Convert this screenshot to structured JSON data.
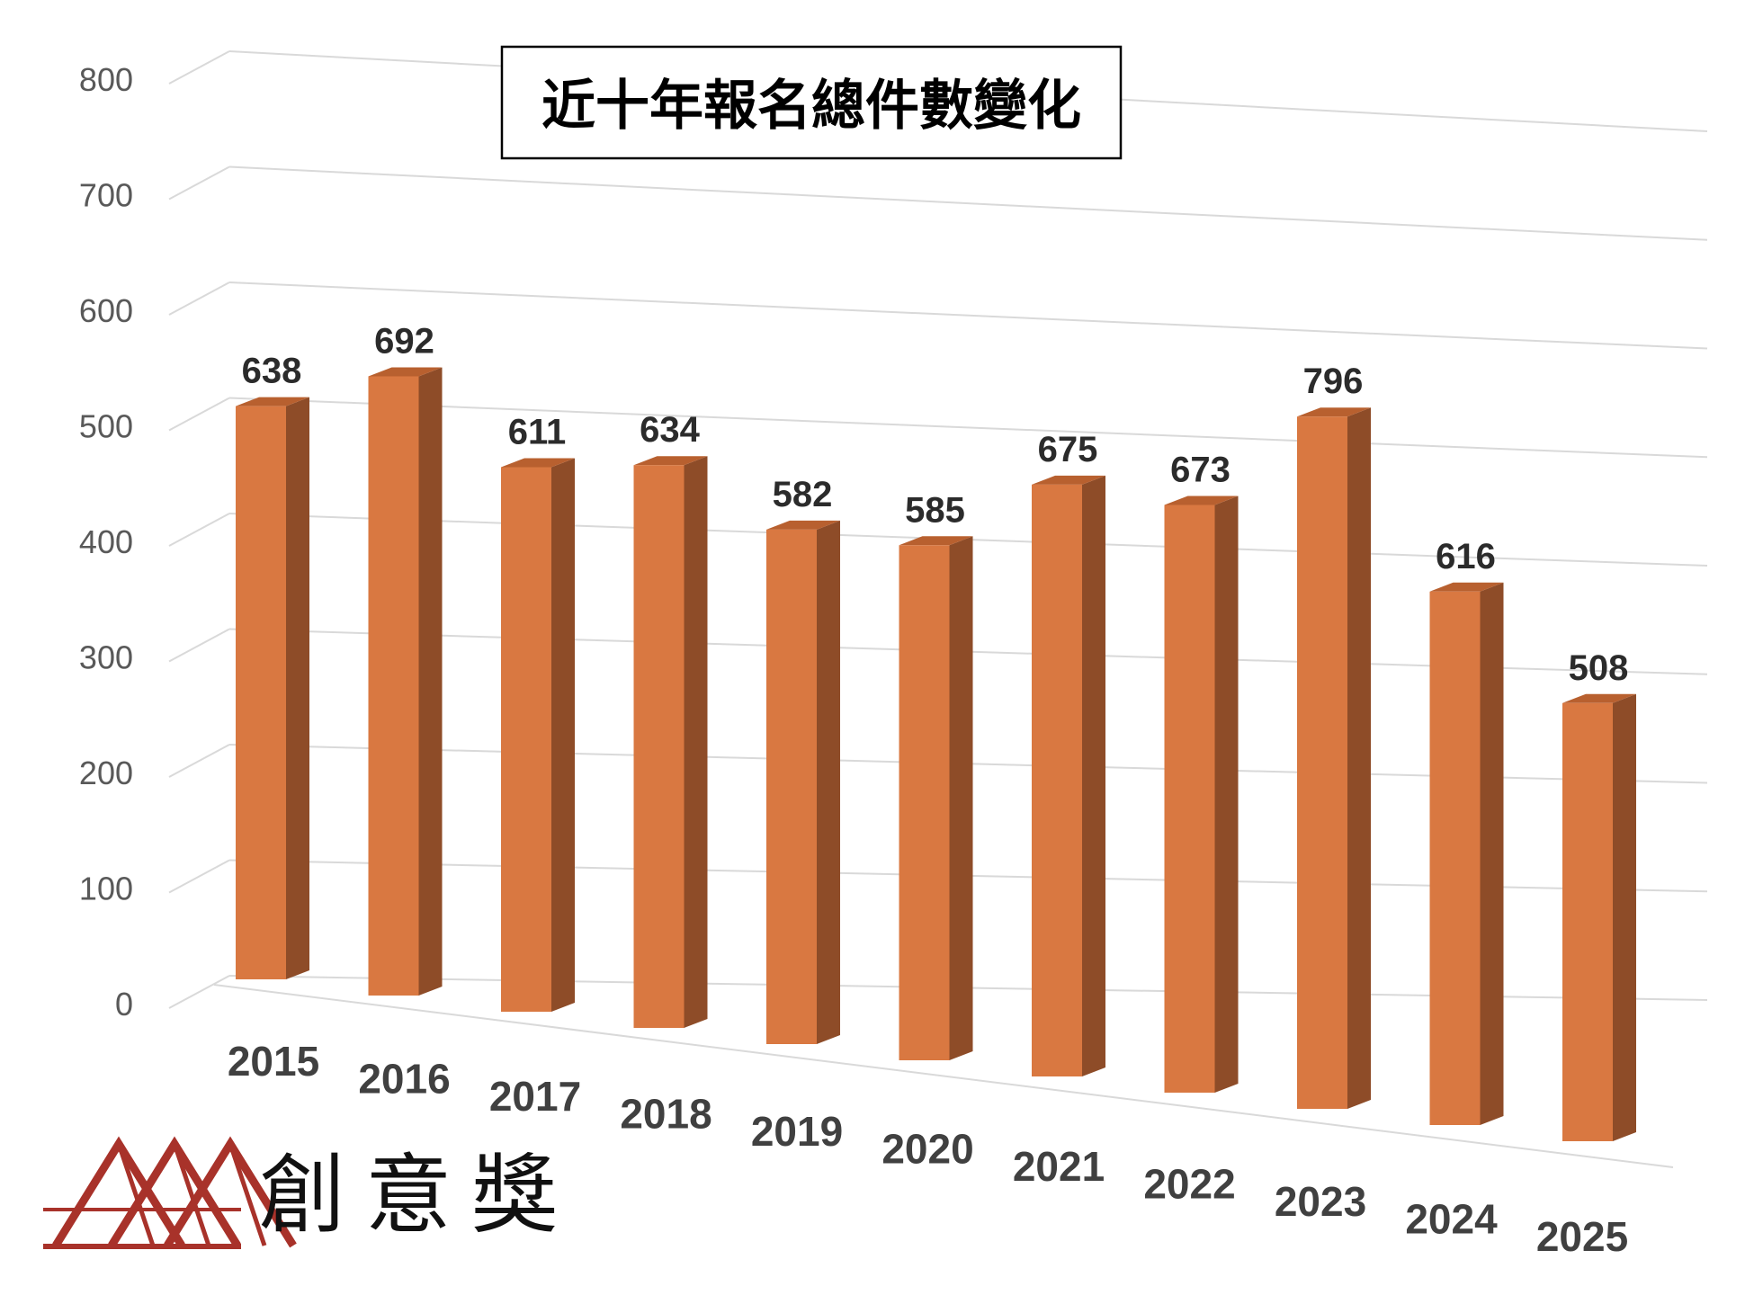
{
  "chart_data": {
    "type": "bar",
    "title": "近十年報名總件數變化",
    "categories": [
      "2015",
      "2016",
      "2017",
      "2018",
      "2019",
      "2020",
      "2021",
      "2022",
      "2023",
      "2024",
      "2025"
    ],
    "values": [
      638,
      692,
      611,
      634,
      582,
      585,
      675,
      673,
      796,
      616,
      508
    ],
    "ylim": [
      0,
      800
    ],
    "yticks": [
      0,
      100,
      200,
      300,
      400,
      500,
      600,
      700,
      800
    ],
    "grid": true,
    "style": "3d-column",
    "legend": "none",
    "colors": {
      "bar_front": "#d97841",
      "bar_side": "#8e4c28",
      "bar_top": "#b8602f",
      "grid": "#d9d9d9"
    }
  },
  "logo": {
    "text": "創意獎",
    "color": "#a8322a"
  }
}
